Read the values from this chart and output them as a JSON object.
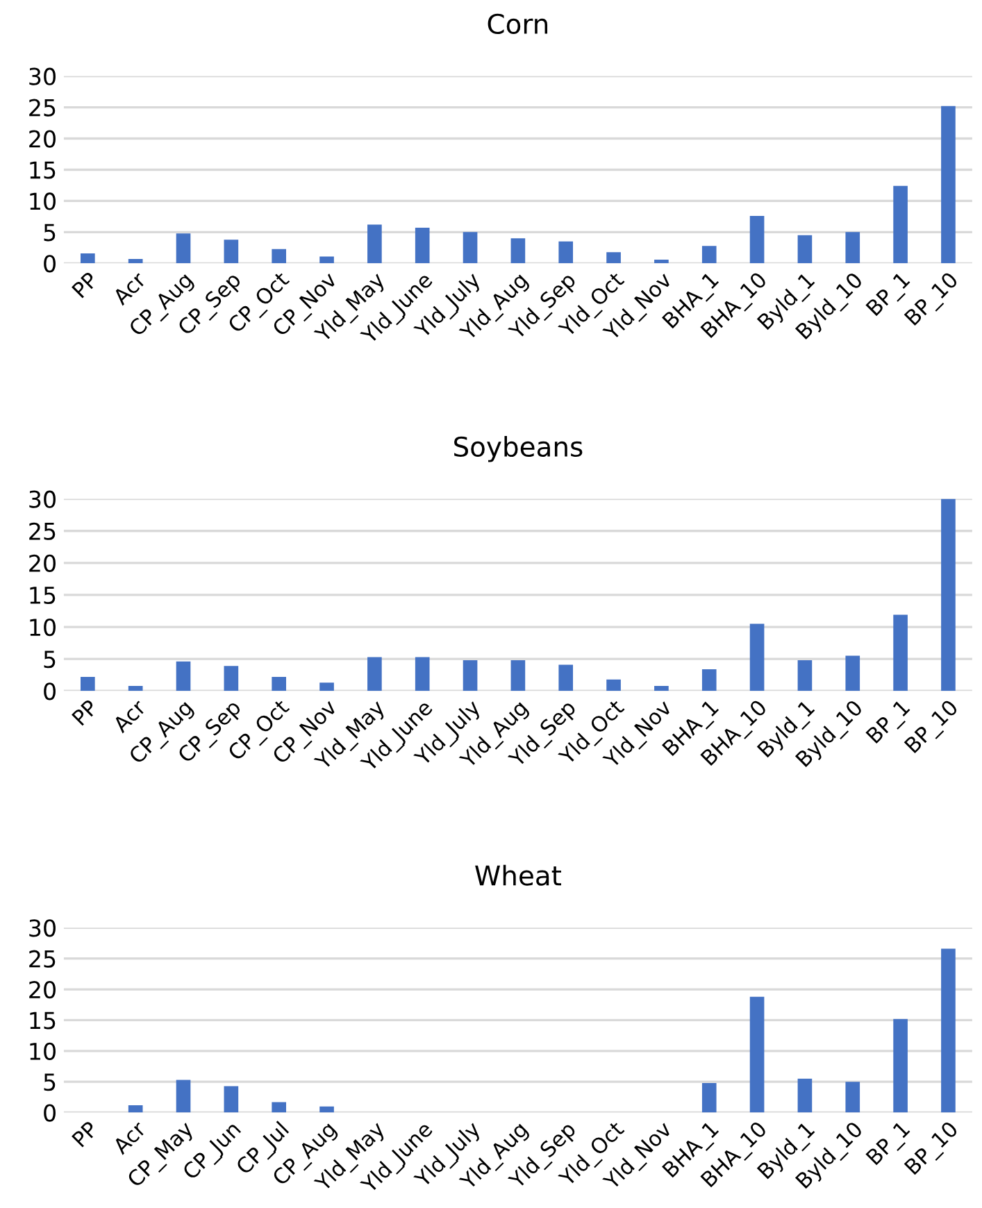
{
  "chart_data": [
    {
      "type": "bar",
      "title": "Corn",
      "categories": [
        "PP",
        "Acr",
        "CP_Aug",
        "CP_Sep",
        "CP_Oct",
        "CP_Nov",
        "Yld_May",
        "Yld_June",
        "Yld_July",
        "Yld_Aug",
        "Yld_Sep",
        "Yld_Oct",
        "Yld_Nov",
        "BHA_1",
        "BHA_10",
        "Byld_1",
        "Byld_10",
        "BP_1",
        "BP_10"
      ],
      "values": [
        1.6,
        0.7,
        4.8,
        3.8,
        2.3,
        1.1,
        6.2,
        5.7,
        5.0,
        4.0,
        3.5,
        1.8,
        0.6,
        2.8,
        7.6,
        4.5,
        5.0,
        12.4,
        25.2
      ],
      "color": "#4472c4",
      "ylim": [
        0,
        30
      ],
      "yticks": [
        0,
        5,
        10,
        15,
        20,
        25,
        30
      ],
      "grid": "y"
    },
    {
      "type": "bar",
      "title": "Soybeans",
      "categories": [
        "PP",
        "Acr",
        "CP_Aug",
        "CP_Sep",
        "CP_Oct",
        "CP_Nov",
        "Yld_May",
        "Yld_June",
        "Yld_July",
        "Yld_Aug",
        "Yld_Sep",
        "Yld_Oct",
        "Yld_Nov",
        "BHA_1",
        "BHA_10",
        "Byld_1",
        "Byld_10",
        "BP_1",
        "BP_10"
      ],
      "values": [
        2.2,
        0.8,
        4.6,
        3.9,
        2.2,
        1.3,
        5.3,
        5.3,
        4.8,
        4.8,
        4.1,
        1.8,
        0.8,
        3.4,
        10.5,
        4.8,
        5.5,
        11.9,
        30.0
      ],
      "color": "#4472c4",
      "ylim": [
        0,
        30
      ],
      "yticks": [
        0,
        5,
        10,
        15,
        20,
        25,
        30
      ],
      "grid": "y"
    },
    {
      "type": "bar",
      "title": "Wheat",
      "categories": [
        "PP",
        "Acr",
        "CP_May",
        "CP_Jun",
        "CP_Jul",
        "CP_Aug",
        "Yld_May",
        "Yld_June",
        "Yld_July",
        "Yld_Aug",
        "Yld_Sep",
        "Yld_Oct",
        "Yld_Nov",
        "BHA_1",
        "BHA_10",
        "Byld_1",
        "Byld_10",
        "BP_1",
        "BP_10"
      ],
      "values": [
        null,
        1.2,
        5.3,
        4.3,
        1.7,
        1.0,
        null,
        null,
        null,
        null,
        null,
        null,
        null,
        4.8,
        18.8,
        5.5,
        5.0,
        15.2,
        26.6
      ],
      "color": "#4472c4",
      "ylim": [
        0,
        30
      ],
      "yticks": [
        0,
        5,
        10,
        15,
        20,
        25,
        30
      ],
      "grid": "y"
    }
  ]
}
